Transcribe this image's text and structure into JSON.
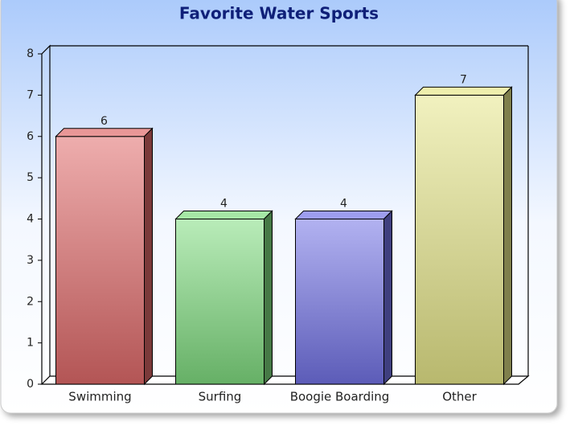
{
  "chart_data": {
    "type": "bar3d",
    "title": "Favorite Water Sports",
    "categories": [
      "Swimming",
      "Surfing",
      "Boogie Boarding",
      "Other"
    ],
    "values": [
      6,
      4,
      4,
      7
    ],
    "colors": [
      "#e06a6a",
      "#7fdc7f",
      "#7373e6",
      "#e6e68a"
    ],
    "ylim": [
      0,
      8
    ],
    "yticks": [
      0,
      1,
      2,
      3,
      4,
      5,
      6,
      7,
      8
    ]
  }
}
